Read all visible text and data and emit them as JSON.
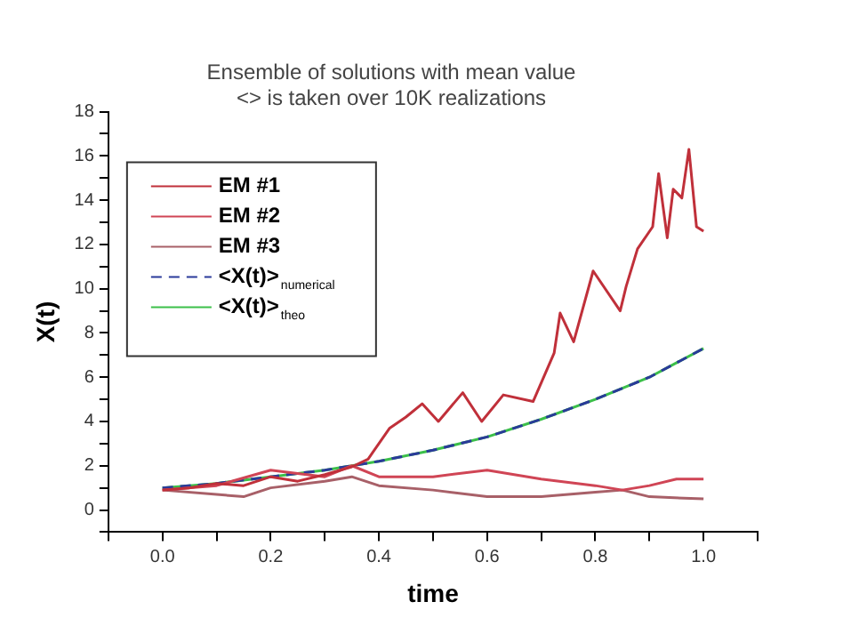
{
  "chart_data": {
    "type": "line",
    "title": "Ensemble of solutions with mean value\n<> is taken over 10K realizations",
    "xlabel": "time",
    "ylabel": "X(t)",
    "xlim": [
      -0.1,
      1.1
    ],
    "xticks": [
      {
        "value": -0.1,
        "label": null
      },
      "0.0",
      {
        "value": 0.1,
        "label": null
      },
      {
        "value": 0.2,
        "label": "0.2"
      },
      {
        "value": 0.3,
        "label": null
      },
      {
        "value": 0.4,
        "label": "0.4"
      },
      {
        "value": 0.5,
        "label": null
      },
      {
        "value": 0.6,
        "label": "0.6"
      },
      {
        "value": 0.7,
        "label": null
      },
      {
        "value": 0.8,
        "label": "0.8"
      },
      {
        "value": 0.9,
        "label": null
      },
      {
        "value": 1,
        "label": "1.0"
      },
      {
        "value": 1.1,
        "label": null
      }
    ],
    "ylim": [
      -1,
      18
    ],
    "yticks": [
      {
        "value": -1,
        "label": null
      },
      0,
      {
        "value": 1,
        "label": null
      },
      2,
      {
        "value": 3,
        "label": null
      },
      4,
      {
        "value": 5,
        "label": null
      },
      6,
      {
        "value": 7,
        "label": null
      },
      8,
      {
        "value": 9,
        "label": null
      },
      10,
      {
        "value": 11,
        "label": null
      },
      12,
      {
        "value": 13,
        "label": null
      },
      14,
      {
        "value": 15,
        "label": null
      },
      16,
      {
        "value": 17,
        "label": null
      },
      18
    ],
    "legend": "top left",
    "grid": false,
    "marker": "none",
    "line_style": "solid",
    "series": [
      {
        "name": "EM #1",
        "color": "#c0303a",
        "x": [
          0,
          0.05,
          0.1,
          0.15,
          0.2,
          0.25,
          0.3,
          0.35,
          0.38,
          0.42,
          0.45,
          0.48,
          0.51,
          0.555,
          0.59,
          0.63,
          0.685,
          0.724,
          0.735,
          0.76,
          0.796,
          0.846,
          0.857,
          0.878,
          0.906,
          0.917,
          0.933,
          0.944,
          0.96,
          0.973,
          0.987,
          1
        ],
        "values": [
          0.9,
          1.0,
          1.2,
          1.1,
          1.5,
          1.3,
          1.6,
          1.95,
          2.3,
          3.7,
          4.2,
          4.8,
          4.0,
          5.3,
          4.0,
          5.2,
          4.9,
          7.1,
          8.9,
          7.6,
          10.8,
          9.0,
          10.1,
          11.8,
          12.8,
          15.2,
          12.3,
          14.5,
          14.1,
          16.3,
          12.8,
          12.6
        ]
      },
      {
        "name": "EM #2",
        "color": "#d04555",
        "x": [
          0,
          0.1,
          0.2,
          0.3,
          0.35,
          0.4,
          0.5,
          0.6,
          0.7,
          0.8,
          0.85,
          0.9,
          0.95,
          1
        ],
        "values": [
          0.9,
          1.1,
          1.8,
          1.5,
          2.0,
          1.5,
          1.5,
          1.8,
          1.4,
          1.1,
          0.9,
          1.1,
          1.4,
          1.4
        ]
      },
      {
        "name": "EM #3",
        "color": "#a86068",
        "x": [
          0,
          0.1,
          0.15,
          0.2,
          0.3,
          0.35,
          0.4,
          0.5,
          0.6,
          0.7,
          0.8,
          0.85,
          0.9,
          1
        ],
        "values": [
          0.9,
          0.7,
          0.6,
          1.0,
          1.3,
          1.5,
          1.1,
          0.9,
          0.6,
          0.6,
          0.8,
          0.9,
          0.6,
          0.5
        ]
      },
      {
        "name": "<X(t)>$_{numerical}$",
        "color": "#2a3a9a",
        "line_style": "dashed",
        "x": [
          0,
          0.1,
          0.2,
          0.3,
          0.4,
          0.5,
          0.6,
          0.7,
          0.8,
          0.9,
          1
        ],
        "values": [
          1,
          1.2,
          1.5,
          1.8,
          2.2,
          2.7,
          3.3,
          4.1,
          5.0,
          6.0,
          7.3
        ]
      },
      {
        "name": "<X(t)>$_{theo}$",
        "color": "#3cbf4a",
        "x": [
          0,
          0.1,
          0.2,
          0.3,
          0.4,
          0.5,
          0.6,
          0.7,
          0.8,
          0.9,
          1
        ],
        "values": [
          1,
          1.2,
          1.5,
          1.8,
          2.2,
          2.7,
          3.3,
          4.1,
          5.0,
          6.0,
          7.3
        ]
      }
    ]
  }
}
